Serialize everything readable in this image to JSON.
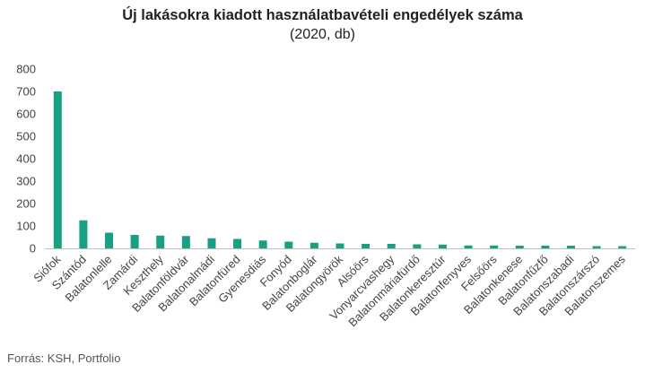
{
  "chart_data": {
    "type": "bar",
    "title": "Új lakásokra kiadott használatbavételi engedélyek száma",
    "subtitle": "(2020, db)",
    "categories": [
      "Siófok",
      "Szántód",
      "Balatonlelle",
      "Zamárdi",
      "Keszthely",
      "Balatonföldvár",
      "Balatonalmádi",
      "Balatonfüred",
      "Gyenesdiás",
      "Fonyód",
      "Balatonboglár",
      "Balatongyörök",
      "Alsóörs",
      "Vonyarcvashegy",
      "Balatonmáriafürdő",
      "Balatonkeresztúr",
      "Balatonfenyves",
      "Felsőörs",
      "Balatonkenese",
      "Balatonfűzfő",
      "Balatonszabadi",
      "Balatonszárszó",
      "Balatonszemes"
    ],
    "values": [
      700,
      125,
      70,
      60,
      57,
      55,
      45,
      42,
      35,
      30,
      25,
      22,
      20,
      20,
      18,
      17,
      13,
      13,
      12,
      12,
      12,
      10,
      10
    ],
    "ylim": [
      0,
      800
    ],
    "yticks": [
      0,
      100,
      200,
      300,
      400,
      500,
      600,
      700,
      800
    ],
    "bar_color": "#17a081",
    "grid": false
  },
  "source": "Forrás: KSH, Portfolio"
}
